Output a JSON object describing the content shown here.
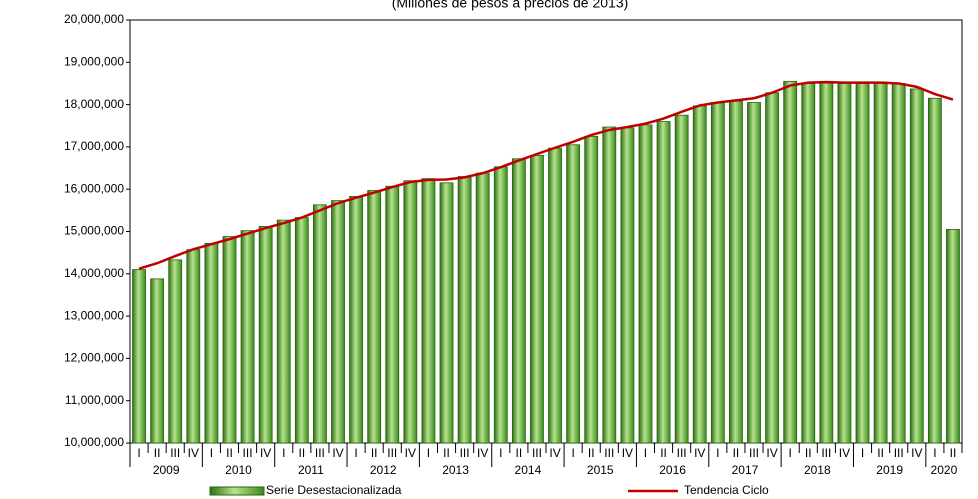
{
  "chart_data": {
    "type": "bar",
    "title": "(Millones de pesos a precios de 2013)",
    "categories": [
      "I",
      "II",
      "III",
      "IV",
      "I",
      "II",
      "III",
      "IV",
      "I",
      "II",
      "III",
      "IV",
      "I",
      "II",
      "III",
      "IV",
      "I",
      "II",
      "III",
      "IV",
      "I",
      "II",
      "III",
      "IV",
      "I",
      "II",
      "III",
      "IV",
      "I",
      "II",
      "III",
      "IV",
      "I",
      "II",
      "III",
      "IV",
      "I",
      "II",
      "III",
      "IV",
      "I",
      "II",
      "III",
      "IV",
      "I",
      "II"
    ],
    "years": [
      "2009",
      "2010",
      "2011",
      "2012",
      "2013",
      "2014",
      "2015",
      "2016",
      "2017",
      "2018",
      "2019",
      "2020"
    ],
    "series": [
      {
        "name": "Serie Desestacionalizada",
        "type": "bar",
        "color": "#3f8f1f",
        "values": [
          14100000,
          13880000,
          14330000,
          14570000,
          14720000,
          14880000,
          15020000,
          15120000,
          15270000,
          15330000,
          15630000,
          15730000,
          15830000,
          15970000,
          16070000,
          16200000,
          16250000,
          16150000,
          16300000,
          16380000,
          16530000,
          16720000,
          16800000,
          16970000,
          17050000,
          17250000,
          17470000,
          17450000,
          17520000,
          17600000,
          17750000,
          17970000,
          18050000,
          18080000,
          18050000,
          18280000,
          18550000,
          18500000,
          18550000,
          18500000,
          18500000,
          18520000,
          18500000,
          18370000,
          18150000,
          15050000
        ]
      },
      {
        "name": "Tendencia Ciclo",
        "type": "line",
        "color": "#c00000",
        "values": [
          14120000,
          14250000,
          14420000,
          14580000,
          14700000,
          14820000,
          14950000,
          15080000,
          15200000,
          15330000,
          15500000,
          15670000,
          15800000,
          15920000,
          16050000,
          16170000,
          16220000,
          16230000,
          16280000,
          16380000,
          16520000,
          16680000,
          16830000,
          16980000,
          17120000,
          17280000,
          17400000,
          17470000,
          17550000,
          17670000,
          17830000,
          17980000,
          18050000,
          18100000,
          18150000,
          18280000,
          18450000,
          18520000,
          18530000,
          18520000,
          18520000,
          18520000,
          18500000,
          18420000,
          18250000,
          18120000
        ]
      }
    ],
    "ylim": [
      10000000,
      20000000
    ],
    "yticks": [
      {
        "value": 10000000,
        "label": "10,000,000"
      },
      {
        "value": 11000000,
        "label": "11,000,000"
      },
      {
        "value": 12000000,
        "label": "12,000,000"
      },
      {
        "value": 13000000,
        "label": "13,000,000"
      },
      {
        "value": 14000000,
        "label": "14,000,000"
      },
      {
        "value": 15000000,
        "label": "15,000,000"
      },
      {
        "value": 16000000,
        "label": "16,000,000"
      },
      {
        "value": 17000000,
        "label": "17,000,000"
      },
      {
        "value": 18000000,
        "label": "18,000,000"
      },
      {
        "value": 19000000,
        "label": "19,000,000"
      },
      {
        "value": 20000000,
        "label": "20,000,000"
      }
    ],
    "legend": "bottom"
  }
}
